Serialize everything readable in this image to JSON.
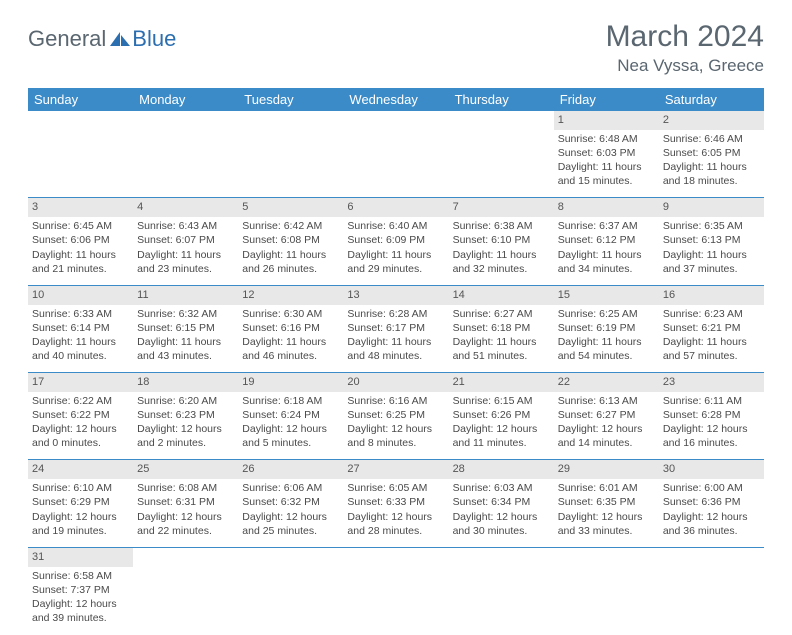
{
  "brand": {
    "part1": "General",
    "part2": "Blue",
    "text_color1": "#5a6670",
    "text_color2": "#2c6fb0",
    "shape_color": "#2c6fb0"
  },
  "title": "March 2024",
  "location": "Nea Vyssa, Greece",
  "colors": {
    "header_bg": "#3b8bc9",
    "header_text": "#ffffff",
    "daynum_bg": "#e8e8e8",
    "border": "#3b8bc9",
    "body_text": "#4a4a4a",
    "title_text": "#5a6670"
  },
  "day_headers": [
    "Sunday",
    "Monday",
    "Tuesday",
    "Wednesday",
    "Thursday",
    "Friday",
    "Saturday"
  ],
  "weeks": [
    [
      null,
      null,
      null,
      null,
      null,
      {
        "n": "1",
        "sr": "Sunrise: 6:48 AM",
        "ss": "Sunset: 6:03 PM",
        "dl": "Daylight: 11 hours and 15 minutes."
      },
      {
        "n": "2",
        "sr": "Sunrise: 6:46 AM",
        "ss": "Sunset: 6:05 PM",
        "dl": "Daylight: 11 hours and 18 minutes."
      }
    ],
    [
      {
        "n": "3",
        "sr": "Sunrise: 6:45 AM",
        "ss": "Sunset: 6:06 PM",
        "dl": "Daylight: 11 hours and 21 minutes."
      },
      {
        "n": "4",
        "sr": "Sunrise: 6:43 AM",
        "ss": "Sunset: 6:07 PM",
        "dl": "Daylight: 11 hours and 23 minutes."
      },
      {
        "n": "5",
        "sr": "Sunrise: 6:42 AM",
        "ss": "Sunset: 6:08 PM",
        "dl": "Daylight: 11 hours and 26 minutes."
      },
      {
        "n": "6",
        "sr": "Sunrise: 6:40 AM",
        "ss": "Sunset: 6:09 PM",
        "dl": "Daylight: 11 hours and 29 minutes."
      },
      {
        "n": "7",
        "sr": "Sunrise: 6:38 AM",
        "ss": "Sunset: 6:10 PM",
        "dl": "Daylight: 11 hours and 32 minutes."
      },
      {
        "n": "8",
        "sr": "Sunrise: 6:37 AM",
        "ss": "Sunset: 6:12 PM",
        "dl": "Daylight: 11 hours and 34 minutes."
      },
      {
        "n": "9",
        "sr": "Sunrise: 6:35 AM",
        "ss": "Sunset: 6:13 PM",
        "dl": "Daylight: 11 hours and 37 minutes."
      }
    ],
    [
      {
        "n": "10",
        "sr": "Sunrise: 6:33 AM",
        "ss": "Sunset: 6:14 PM",
        "dl": "Daylight: 11 hours and 40 minutes."
      },
      {
        "n": "11",
        "sr": "Sunrise: 6:32 AM",
        "ss": "Sunset: 6:15 PM",
        "dl": "Daylight: 11 hours and 43 minutes."
      },
      {
        "n": "12",
        "sr": "Sunrise: 6:30 AM",
        "ss": "Sunset: 6:16 PM",
        "dl": "Daylight: 11 hours and 46 minutes."
      },
      {
        "n": "13",
        "sr": "Sunrise: 6:28 AM",
        "ss": "Sunset: 6:17 PM",
        "dl": "Daylight: 11 hours and 48 minutes."
      },
      {
        "n": "14",
        "sr": "Sunrise: 6:27 AM",
        "ss": "Sunset: 6:18 PM",
        "dl": "Daylight: 11 hours and 51 minutes."
      },
      {
        "n": "15",
        "sr": "Sunrise: 6:25 AM",
        "ss": "Sunset: 6:19 PM",
        "dl": "Daylight: 11 hours and 54 minutes."
      },
      {
        "n": "16",
        "sr": "Sunrise: 6:23 AM",
        "ss": "Sunset: 6:21 PM",
        "dl": "Daylight: 11 hours and 57 minutes."
      }
    ],
    [
      {
        "n": "17",
        "sr": "Sunrise: 6:22 AM",
        "ss": "Sunset: 6:22 PM",
        "dl": "Daylight: 12 hours and 0 minutes."
      },
      {
        "n": "18",
        "sr": "Sunrise: 6:20 AM",
        "ss": "Sunset: 6:23 PM",
        "dl": "Daylight: 12 hours and 2 minutes."
      },
      {
        "n": "19",
        "sr": "Sunrise: 6:18 AM",
        "ss": "Sunset: 6:24 PM",
        "dl": "Daylight: 12 hours and 5 minutes."
      },
      {
        "n": "20",
        "sr": "Sunrise: 6:16 AM",
        "ss": "Sunset: 6:25 PM",
        "dl": "Daylight: 12 hours and 8 minutes."
      },
      {
        "n": "21",
        "sr": "Sunrise: 6:15 AM",
        "ss": "Sunset: 6:26 PM",
        "dl": "Daylight: 12 hours and 11 minutes."
      },
      {
        "n": "22",
        "sr": "Sunrise: 6:13 AM",
        "ss": "Sunset: 6:27 PM",
        "dl": "Daylight: 12 hours and 14 minutes."
      },
      {
        "n": "23",
        "sr": "Sunrise: 6:11 AM",
        "ss": "Sunset: 6:28 PM",
        "dl": "Daylight: 12 hours and 16 minutes."
      }
    ],
    [
      {
        "n": "24",
        "sr": "Sunrise: 6:10 AM",
        "ss": "Sunset: 6:29 PM",
        "dl": "Daylight: 12 hours and 19 minutes."
      },
      {
        "n": "25",
        "sr": "Sunrise: 6:08 AM",
        "ss": "Sunset: 6:31 PM",
        "dl": "Daylight: 12 hours and 22 minutes."
      },
      {
        "n": "26",
        "sr": "Sunrise: 6:06 AM",
        "ss": "Sunset: 6:32 PM",
        "dl": "Daylight: 12 hours and 25 minutes."
      },
      {
        "n": "27",
        "sr": "Sunrise: 6:05 AM",
        "ss": "Sunset: 6:33 PM",
        "dl": "Daylight: 12 hours and 28 minutes."
      },
      {
        "n": "28",
        "sr": "Sunrise: 6:03 AM",
        "ss": "Sunset: 6:34 PM",
        "dl": "Daylight: 12 hours and 30 minutes."
      },
      {
        "n": "29",
        "sr": "Sunrise: 6:01 AM",
        "ss": "Sunset: 6:35 PM",
        "dl": "Daylight: 12 hours and 33 minutes."
      },
      {
        "n": "30",
        "sr": "Sunrise: 6:00 AM",
        "ss": "Sunset: 6:36 PM",
        "dl": "Daylight: 12 hours and 36 minutes."
      }
    ],
    [
      {
        "n": "31",
        "sr": "Sunrise: 6:58 AM",
        "ss": "Sunset: 7:37 PM",
        "dl": "Daylight: 12 hours and 39 minutes."
      },
      null,
      null,
      null,
      null,
      null,
      null
    ]
  ]
}
